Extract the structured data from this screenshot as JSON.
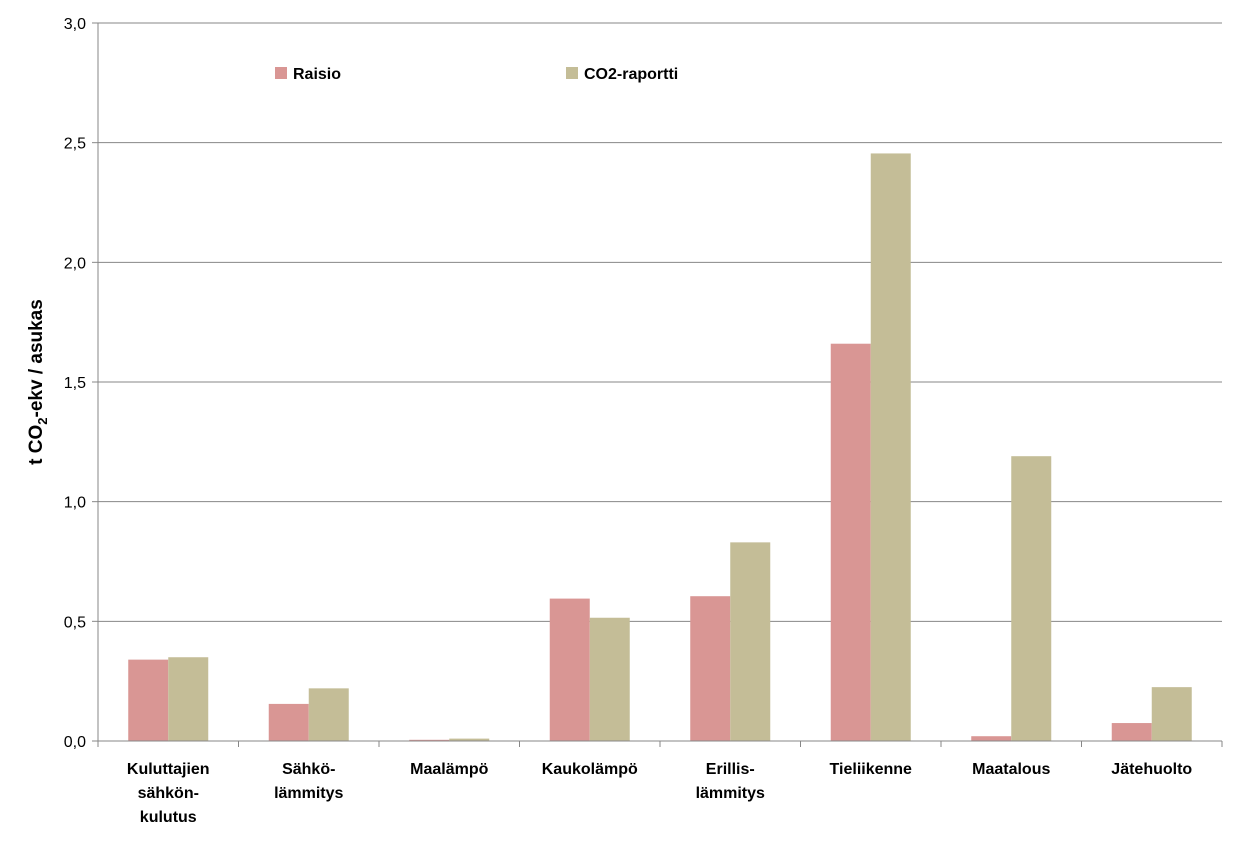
{
  "chart_data": {
    "type": "bar",
    "y_label_parts": [
      "t CO",
      "2",
      "-ekv / asukas"
    ],
    "categories": [
      [
        "Kuluttajien",
        "sähkön-",
        "kulutus"
      ],
      [
        "Sähkö-",
        "lämmitys"
      ],
      [
        "Maalämpö"
      ],
      [
        "Kaukolämpö"
      ],
      [
        "Erillis-",
        "lämmitys"
      ],
      [
        "Tieliikenne"
      ],
      [
        "Maatalous"
      ],
      [
        "Jätehuolto"
      ]
    ],
    "series": [
      {
        "name": "Raisio",
        "color": "#d99694",
        "values": [
          0.34,
          0.155,
          0.005,
          0.595,
          0.605,
          1.66,
          0.02,
          0.075
        ]
      },
      {
        "name": "CO2-raportti",
        "color": "#c4bd97",
        "values": [
          0.35,
          0.22,
          0.01,
          0.515,
          0.83,
          2.455,
          1.19,
          0.225
        ]
      }
    ],
    "ylim": [
      0,
      3
    ],
    "yticks": [
      {
        "value": 0,
        "label": "0,0"
      },
      {
        "value": 0.5,
        "label": "0,5"
      },
      {
        "value": 1,
        "label": "1,0"
      },
      {
        "value": 1.5,
        "label": "1,5"
      },
      {
        "value": 2,
        "label": "2,0"
      },
      {
        "value": 2.5,
        "label": "2,5"
      },
      {
        "value": 3,
        "label": "3,0"
      }
    ],
    "grid": true
  }
}
